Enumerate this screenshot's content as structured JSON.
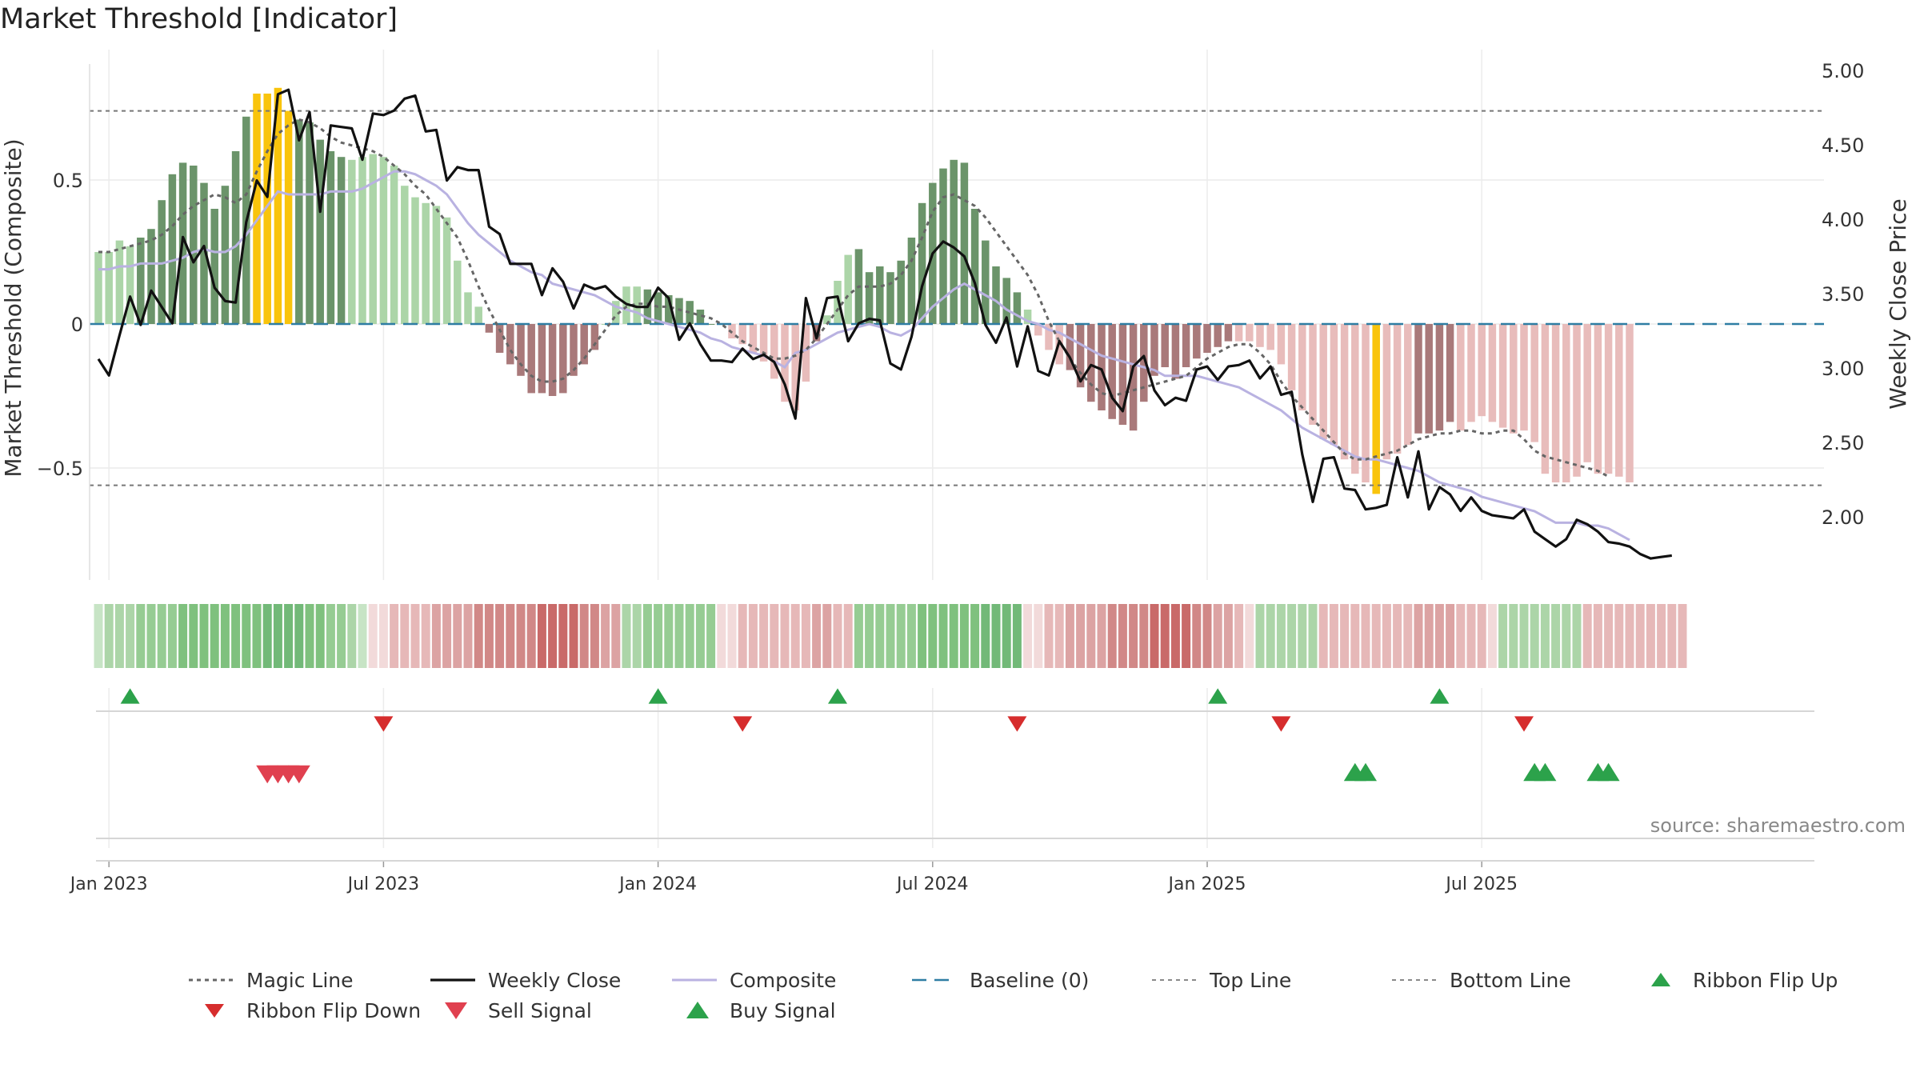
{
  "chart_data": {
    "type": "bar",
    "title": "Market Threshold [Indicator]",
    "ylabel_left": "Market Threshold (Composite)",
    "ylabel_right": "Weekly Close Price",
    "source": "source: sharemaestro.com",
    "x_ticks": [
      {
        "label": "Jan 2023",
        "week": 1
      },
      {
        "label": "Jul 2023",
        "week": 27
      },
      {
        "label": "Jan 2024",
        "week": 53
      },
      {
        "label": "Jul 2024",
        "week": 79
      },
      {
        "label": "Jan 2025",
        "week": 105
      },
      {
        "label": "Jul 2025",
        "week": 131
      }
    ],
    "left_axis": {
      "ylim": [
        -0.9,
        0.9
      ],
      "ticks": [
        {
          "value": 0.5,
          "label": "0.5"
        },
        {
          "value": 0,
          "label": "0"
        },
        {
          "value": -0.5,
          "label": "−0.5"
        }
      ]
    },
    "right_axis": {
      "ylim": [
        1.63,
        5.0
      ],
      "ticks": [
        {
          "value": 5.0,
          "label": "5.00"
        },
        {
          "value": 4.5,
          "label": "4.50"
        },
        {
          "value": 4.0,
          "label": "4.00"
        },
        {
          "value": 3.5,
          "label": "3.50"
        },
        {
          "value": 3.0,
          "label": "3.00"
        },
        {
          "value": 2.5,
          "label": "2.50"
        },
        {
          "value": 2.0,
          "label": "2.00"
        }
      ]
    },
    "top_line": 0.74,
    "bottom_line": -0.56,
    "baseline": 0,
    "composite_bars": [
      0.25,
      0.25,
      0.29,
      0.27,
      0.3,
      0.33,
      0.43,
      0.52,
      0.56,
      0.55,
      0.49,
      0.4,
      0.48,
      0.6,
      0.72,
      0.8,
      0.8,
      0.82,
      0.74,
      0.71,
      0.7,
      0.64,
      0.6,
      0.58,
      0.57,
      0.58,
      0.59,
      0.58,
      0.55,
      0.48,
      0.44,
      0.42,
      0.41,
      0.37,
      0.22,
      0.11,
      0.06,
      -0.03,
      -0.1,
      -0.14,
      -0.18,
      -0.24,
      -0.24,
      -0.25,
      -0.24,
      -0.18,
      -0.14,
      -0.09,
      0,
      0.08,
      0.13,
      0.13,
      0.12,
      0.11,
      0.1,
      0.09,
      0.08,
      0.05,
      0,
      0,
      -0.05,
      -0.07,
      -0.1,
      -0.13,
      -0.19,
      -0.27,
      -0.3,
      -0.2,
      -0.06,
      0.03,
      0.15,
      0.24,
      0.26,
      0.18,
      0.2,
      0.18,
      0.22,
      0.3,
      0.42,
      0.49,
      0.54,
      0.57,
      0.56,
      0.4,
      0.29,
      0.2,
      0.16,
      0.11,
      0.05,
      -0.04,
      -0.09,
      -0.14,
      -0.16,
      -0.22,
      -0.27,
      -0.3,
      -0.33,
      -0.35,
      -0.37,
      -0.27,
      -0.18,
      -0.15,
      -0.19,
      -0.15,
      -0.12,
      -0.1,
      -0.08,
      -0.06,
      -0.06,
      -0.06,
      -0.08,
      -0.09,
      -0.14,
      -0.23,
      -0.3,
      -0.35,
      -0.4,
      -0.42,
      -0.47,
      -0.52,
      -0.55,
      -0.59,
      -0.47,
      -0.45,
      -0.42,
      -0.38,
      -0.38,
      -0.37,
      -0.34,
      -0.37,
      -0.34,
      -0.32,
      -0.34,
      -0.36,
      -0.38,
      -0.37,
      -0.41,
      -0.52,
      -0.55,
      -0.55,
      -0.53,
      -0.48,
      -0.52,
      -0.52,
      -0.53,
      -0.55
    ],
    "composite_line": [
      0.19,
      0.19,
      0.2,
      0.2,
      0.21,
      0.21,
      0.21,
      0.22,
      0.23,
      0.25,
      0.26,
      0.25,
      0.25,
      0.27,
      0.31,
      0.36,
      0.41,
      0.46,
      0.45,
      0.45,
      0.45,
      0.45,
      0.46,
      0.46,
      0.46,
      0.47,
      0.49,
      0.51,
      0.53,
      0.53,
      0.52,
      0.5,
      0.48,
      0.45,
      0.4,
      0.35,
      0.31,
      0.28,
      0.25,
      0.22,
      0.2,
      0.18,
      0.17,
      0.14,
      0.13,
      0.12,
      0.11,
      0.1,
      0.08,
      0.06,
      0.05,
      0.04,
      0.02,
      0.01,
      0.0,
      -0.01,
      -0.02,
      -0.03,
      -0.05,
      -0.06,
      -0.08,
      -0.09,
      -0.1,
      -0.11,
      -0.13,
      -0.15,
      -0.1,
      -0.09,
      -0.07,
      -0.05,
      -0.03,
      -0.02,
      -0.01,
      0.0,
      -0.01,
      -0.03,
      -0.04,
      -0.02,
      0.02,
      0.06,
      0.09,
      0.12,
      0.14,
      0.12,
      0.1,
      0.08,
      0.05,
      0.03,
      0.01,
      0.0,
      -0.02,
      -0.03,
      -0.05,
      -0.07,
      -0.09,
      -0.11,
      -0.12,
      -0.13,
      -0.14,
      -0.15,
      -0.16,
      -0.18,
      -0.18,
      -0.18,
      -0.18,
      -0.19,
      -0.2,
      -0.21,
      -0.22,
      -0.24,
      -0.26,
      -0.28,
      -0.3,
      -0.33,
      -0.36,
      -0.38,
      -0.4,
      -0.42,
      -0.44,
      -0.46,
      -0.47,
      -0.47,
      -0.48,
      -0.49,
      -0.5,
      -0.51,
      -0.53,
      -0.55,
      -0.56,
      -0.57,
      -0.58,
      -0.6,
      -0.61,
      -0.62,
      -0.63,
      -0.64,
      -0.65,
      -0.67,
      -0.69,
      -0.69,
      -0.69,
      -0.7,
      -0.7,
      -0.71,
      -0.73,
      -0.75
    ],
    "magic_line": [
      0.25,
      0.25,
      0.26,
      0.27,
      0.28,
      0.29,
      0.31,
      0.34,
      0.38,
      0.41,
      0.43,
      0.45,
      0.44,
      0.42,
      0.45,
      0.53,
      0.6,
      0.66,
      0.69,
      0.71,
      0.7,
      0.68,
      0.65,
      0.63,
      0.62,
      0.61,
      0.6,
      0.58,
      0.55,
      0.52,
      0.48,
      0.45,
      0.4,
      0.35,
      0.3,
      0.22,
      0.13,
      0.05,
      -0.02,
      -0.09,
      -0.14,
      -0.18,
      -0.2,
      -0.2,
      -0.19,
      -0.16,
      -0.12,
      -0.07,
      -0.02,
      0.03,
      0.06,
      0.07,
      0.07,
      0.06,
      0.06,
      0.05,
      0.04,
      0.03,
      0.02,
      0.0,
      -0.03,
      -0.06,
      -0.08,
      -0.1,
      -0.12,
      -0.12,
      -0.11,
      -0.09,
      -0.05,
      0.0,
      0.05,
      0.1,
      0.13,
      0.13,
      0.13,
      0.14,
      0.17,
      0.22,
      0.3,
      0.39,
      0.44,
      0.45,
      0.43,
      0.41,
      0.37,
      0.32,
      0.27,
      0.22,
      0.17,
      0.1,
      0.01,
      -0.06,
      -0.12,
      -0.17,
      -0.21,
      -0.24,
      -0.25,
      -0.24,
      -0.23,
      -0.22,
      -0.21,
      -0.2,
      -0.19,
      -0.18,
      -0.15,
      -0.12,
      -0.1,
      -0.08,
      -0.07,
      -0.07,
      -0.1,
      -0.14,
      -0.2,
      -0.25,
      -0.29,
      -0.33,
      -0.37,
      -0.41,
      -0.45,
      -0.47,
      -0.47,
      -0.46,
      -0.45,
      -0.44,
      -0.42,
      -0.4,
      -0.39,
      -0.38,
      -0.38,
      -0.37,
      -0.37,
      -0.38,
      -0.38,
      -0.37,
      -0.37,
      -0.4,
      -0.44,
      -0.46,
      -0.47,
      -0.48,
      -0.49,
      -0.5,
      -0.51,
      -0.53
    ],
    "weekly_close": [
      3.06,
      2.95,
      3.22,
      3.48,
      3.29,
      3.52,
      3.41,
      3.3,
      3.88,
      3.71,
      3.82,
      3.54,
      3.45,
      3.44,
      3.98,
      4.26,
      4.15,
      4.84,
      4.87,
      4.53,
      4.72,
      4.05,
      4.63,
      4.62,
      4.61,
      4.4,
      4.71,
      4.7,
      4.73,
      4.81,
      4.83,
      4.59,
      4.6,
      4.26,
      4.35,
      4.33,
      4.33,
      3.95,
      3.9,
      3.7,
      3.7,
      3.7,
      3.49,
      3.67,
      3.58,
      3.4,
      3.56,
      3.53,
      3.55,
      3.48,
      3.43,
      3.41,
      3.41,
      3.54,
      3.47,
      3.19,
      3.3,
      3.16,
      3.05,
      3.05,
      3.04,
      3.13,
      3.06,
      3.09,
      3.04,
      2.89,
      2.66,
      3.47,
      3.2,
      3.47,
      3.48,
      3.18,
      3.3,
      3.33,
      3.32,
      3.03,
      2.99,
      3.21,
      3.55,
      3.77,
      3.85,
      3.81,
      3.75,
      3.57,
      3.29,
      3.17,
      3.34,
      3.01,
      3.28,
      2.98,
      2.95,
      3.18,
      3.07,
      2.91,
      3.02,
      2.99,
      2.8,
      2.71,
      3.01,
      3.08,
      2.85,
      2.75,
      2.8,
      2.78,
      2.99,
      3.01,
      2.92,
      3.01,
      3.02,
      3.05,
      2.93,
      3.01,
      2.82,
      2.84,
      2.42,
      2.1,
      2.39,
      2.4,
      2.19,
      2.18,
      2.05,
      2.06,
      2.08,
      2.4,
      2.13,
      2.44,
      2.05,
      2.2,
      2.15,
      2.04,
      2.13,
      2.04,
      2.01,
      2.0,
      1.99,
      2.05,
      1.9,
      1.85,
      1.8,
      1.85,
      1.98,
      1.95,
      1.9,
      1.83,
      1.82,
      1.8,
      1.75,
      1.72,
      1.73,
      1.74
    ],
    "ribbon": [
      1,
      2,
      2,
      2,
      3,
      3,
      3,
      3,
      4,
      4,
      4,
      4,
      4,
      4,
      4,
      4,
      5,
      5,
      5,
      5,
      4,
      4,
      3,
      3,
      2,
      1,
      -1,
      -1,
      -2,
      -2,
      -2,
      -2,
      -3,
      -3,
      -3,
      -3,
      -4,
      -4,
      -4,
      -4,
      -4,
      -4,
      -5,
      -5,
      -5,
      -5,
      -4,
      -4,
      -3,
      -3,
      2,
      2,
      3,
      3,
      3,
      3,
      3,
      3,
      3,
      -1,
      -1,
      -2,
      -2,
      -2,
      -2,
      -2,
      -2,
      -2,
      -3,
      -3,
      -2,
      -2,
      3,
      3,
      3,
      3,
      3,
      3,
      4,
      4,
      4,
      4,
      4,
      4,
      5,
      5,
      5,
      5,
      -1,
      -1,
      -2,
      -2,
      -3,
      -3,
      -3,
      -3,
      -4,
      -4,
      -4,
      -4,
      -5,
      -5,
      -5,
      -5,
      -4,
      -4,
      -3,
      -3,
      -2,
      -1,
      2,
      2,
      2,
      2,
      2,
      2,
      -2,
      -2,
      -2,
      -2,
      -2,
      -2,
      -2,
      -2,
      -2,
      -3,
      -3,
      -3,
      -3,
      -2,
      -2,
      -2,
      -1,
      2,
      2,
      2,
      2,
      2,
      2,
      2,
      2,
      -2,
      -2,
      -2,
      -2,
      -2,
      -2,
      -2,
      -2,
      -2,
      -2
    ],
    "ribbon_flip_up": [
      3,
      53,
      70,
      106,
      127
    ],
    "ribbon_flip_down": [
      27,
      61,
      87,
      112,
      135
    ],
    "sell_signal": [
      16,
      17,
      18,
      19
    ],
    "buy_signal": [
      119,
      120,
      136,
      137,
      142,
      143
    ],
    "legend": [
      {
        "key": "magic",
        "label": "Magic Line"
      },
      {
        "key": "close",
        "label": "Weekly Close"
      },
      {
        "key": "composite",
        "label": "Composite"
      },
      {
        "key": "baseline",
        "label": "Baseline (0)"
      },
      {
        "key": "top",
        "label": "Top Line"
      },
      {
        "key": "bottom",
        "label": "Bottom Line"
      },
      {
        "key": "flipup",
        "label": "Ribbon Flip Up"
      },
      {
        "key": "flipdown",
        "label": "Ribbon Flip Down"
      },
      {
        "key": "sell",
        "label": "Sell Signal"
      },
      {
        "key": "buy",
        "label": "Buy Signal"
      }
    ],
    "colors": {
      "strong_green": "#6b946a",
      "light_green": "#acd5a8",
      "strong_red": "#a9797a",
      "light_red": "#e8bcbb",
      "alert": "#f9c40c",
      "close": "#111111",
      "composite": "#b9b2e1",
      "magic": "#666666",
      "baseline": "#2e7da3",
      "threshold": "#777777",
      "flip_up": "#2ca24b",
      "flip_down": "#d62d2d",
      "sell": "#e0404f",
      "buy": "#2ca24b"
    }
  }
}
